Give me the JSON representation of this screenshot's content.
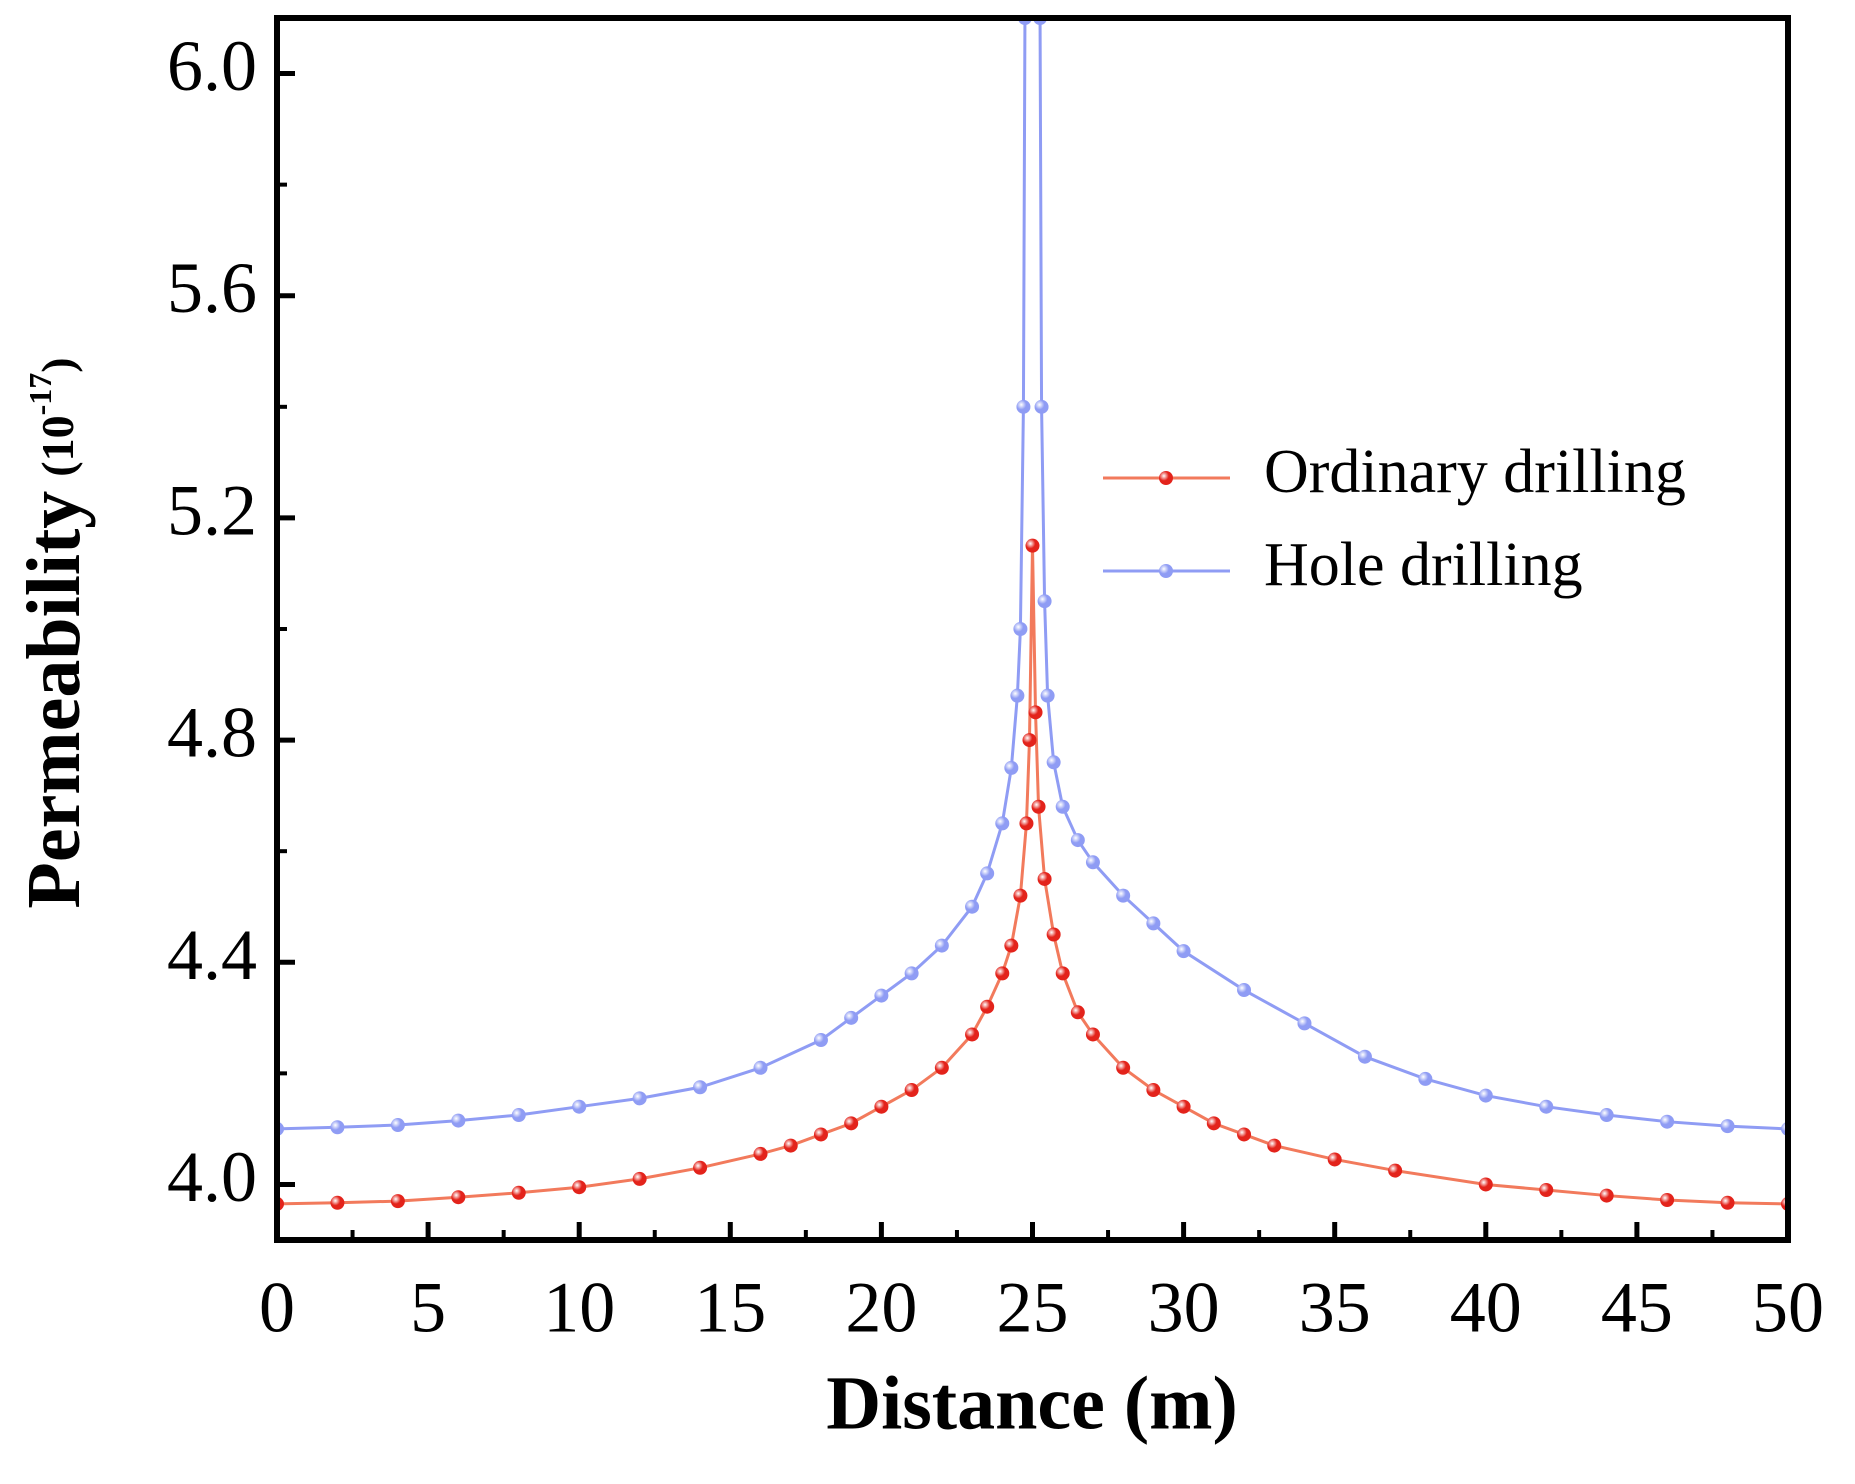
{
  "chart_data": {
    "type": "line",
    "xlabel": "Distance (m)",
    "ylabel": "Permeability",
    "ylabel_unit": {
      "open": "(10",
      "exponent": "-17",
      "close": ")"
    },
    "xlim": [
      0,
      50
    ],
    "ylim": [
      3.9,
      6.1
    ],
    "xticks": [
      0,
      5,
      10,
      15,
      20,
      25,
      30,
      35,
      40,
      45,
      50
    ],
    "yticks": [
      {
        "value": 4,
        "label": "4.0"
      },
      4.4,
      4.8,
      5.2,
      5.6,
      {
        "value": 6,
        "label": "6.0"
      }
    ],
    "legend": "right",
    "series": [
      {
        "name": "Ordinary drilling",
        "color": "#e3231b",
        "line_color": "#f27a5c",
        "x": [
          0,
          2,
          4,
          6,
          8,
          10,
          12,
          14,
          16,
          17,
          18,
          19,
          20,
          21,
          22,
          23,
          23.5,
          24,
          24.3,
          24.6,
          24.8,
          24.9,
          25,
          25.1,
          25.2,
          25.4,
          25.7,
          26,
          26.5,
          27,
          28,
          29,
          30,
          31,
          32,
          33,
          35,
          37,
          40,
          42,
          44,
          46,
          48,
          50
        ],
        "values": [
          3.965,
          3.967,
          3.97,
          3.977,
          3.985,
          3.995,
          4.01,
          4.03,
          4.055,
          4.07,
          4.09,
          4.11,
          4.14,
          4.17,
          4.21,
          4.27,
          4.32,
          4.38,
          4.43,
          4.52,
          4.65,
          4.8,
          5.15,
          4.85,
          4.68,
          4.55,
          4.45,
          4.38,
          4.31,
          4.27,
          4.21,
          4.17,
          4.14,
          4.11,
          4.09,
          4.07,
          4.045,
          4.025,
          4.0,
          3.99,
          3.98,
          3.972,
          3.967,
          3.965
        ]
      },
      {
        "name": "Hole drilling",
        "color": "#8f9cf4",
        "line_color": "#8f9cf4",
        "x": [
          0,
          2,
          4,
          6,
          8,
          10,
          12,
          14,
          16,
          18,
          19,
          20,
          21,
          22,
          23,
          23.5,
          24,
          24.3,
          24.5,
          24.6,
          24.7,
          24.75,
          25.25,
          25.3,
          25.4,
          25.5,
          25.7,
          26,
          26.5,
          27,
          28,
          29,
          30,
          32,
          34,
          36,
          38,
          40,
          42,
          44,
          46,
          48,
          50
        ],
        "values": [
          4.1,
          4.103,
          4.107,
          4.115,
          4.125,
          4.14,
          4.155,
          4.175,
          4.21,
          4.26,
          4.3,
          4.34,
          4.38,
          4.43,
          4.5,
          4.56,
          4.65,
          4.75,
          4.88,
          5.0,
          5.4,
          6.1,
          6.1,
          5.4,
          5.05,
          4.88,
          4.76,
          4.68,
          4.62,
          4.58,
          4.52,
          4.47,
          4.42,
          4.35,
          4.29,
          4.23,
          4.19,
          4.16,
          4.14,
          4.125,
          4.113,
          4.105,
          4.1
        ]
      }
    ]
  }
}
